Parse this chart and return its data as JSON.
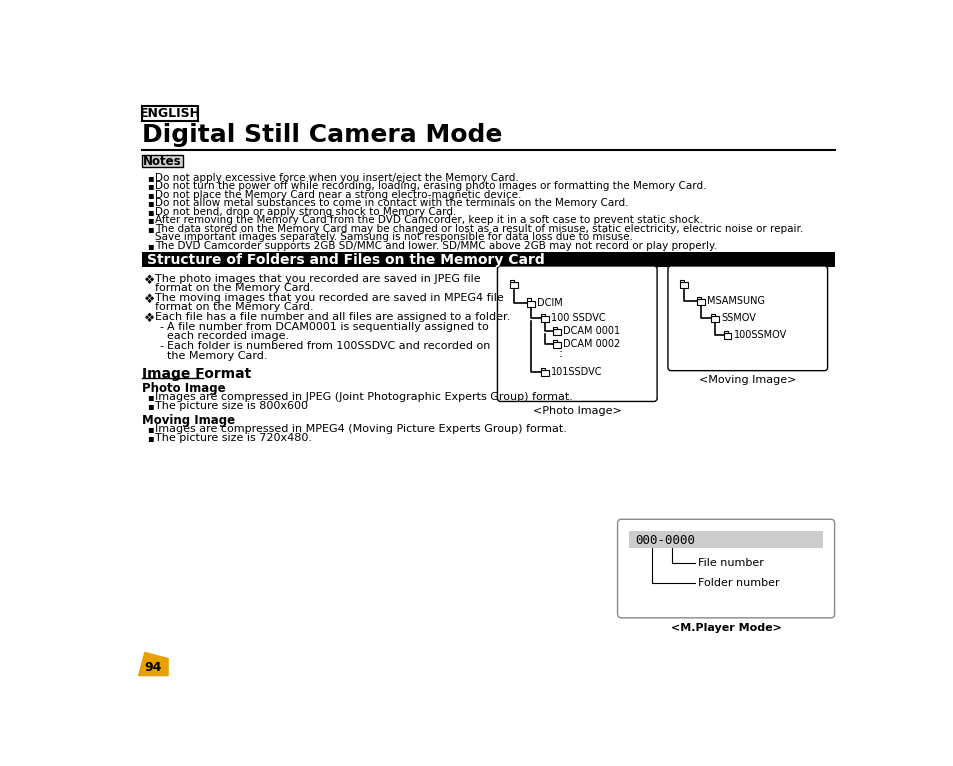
{
  "title": "Digital Still Camera Mode",
  "english_label": "ENGLISH",
  "notes_label": "Notes",
  "notes_items": [
    "Do not apply excessive force when you insert/eject the Memory Card.",
    "Do not turn the power off while recording, loading, erasing photo images or formatting the Memory Card.",
    "Do not place the Memory Card near a strong electro-magnetic device.",
    "Do not allow metal substances to come in contact with the terminals on the Memory Card.",
    "Do not bend, drop or apply strong shock to Memory Card.",
    "After removing the Memory Card from the DVD Camcorder, keep it in a soft case to prevent static shock.",
    "The data stored on the Memory Card may be changed or lost as a result of misuse, static electricity, electric noise or repair.\nSave important images separately. Samsung is not responsible for data loss due to misuse.",
    "The DVD Camcorder supports 2GB SD/MMC and lower. SD/MMC above 2GB may not record or play properly."
  ],
  "section_title": "Structure of Folders and Files on the Memory Card",
  "bullet_items": [
    "The photo images that you recorded are saved in JPEG file\nformat on the Memory Card.",
    "The moving images that you recorded are saved in MPEG4 file\nformat on the Memory Card.",
    "Each file has a file number and all files are assigned to a folder."
  ],
  "sub_bullets": [
    "A file number from DCAM0001 is sequentially assigned to\neach recorded image.",
    "Each folder is numbered from 100SSDVC and recorded on\nthe Memory Card."
  ],
  "image_format_title": "Image Format",
  "photo_image_title": "Photo Image",
  "photo_bullets": [
    "Images are compressed in JPEG (Joint Photographic Experts Group) format.",
    "The picture size is 800x600"
  ],
  "moving_image_title": "Moving Image",
  "moving_bullets": [
    "Images are compressed in MPEG4 (Moving Picture Experts Group) format.",
    "The picture size is 720x480."
  ],
  "photo_image_label": "<Photo Image>",
  "moving_image_label": "<Moving Image>",
  "mplayer_label": "<M.Player Mode>",
  "page_number": "94",
  "bg_color": "#ffffff",
  "text_color": "#000000",
  "section_bg": "#000000",
  "section_text": "#ffffff",
  "notes_bg": "#d0d0d0",
  "highlight_bg": "#cccccc"
}
